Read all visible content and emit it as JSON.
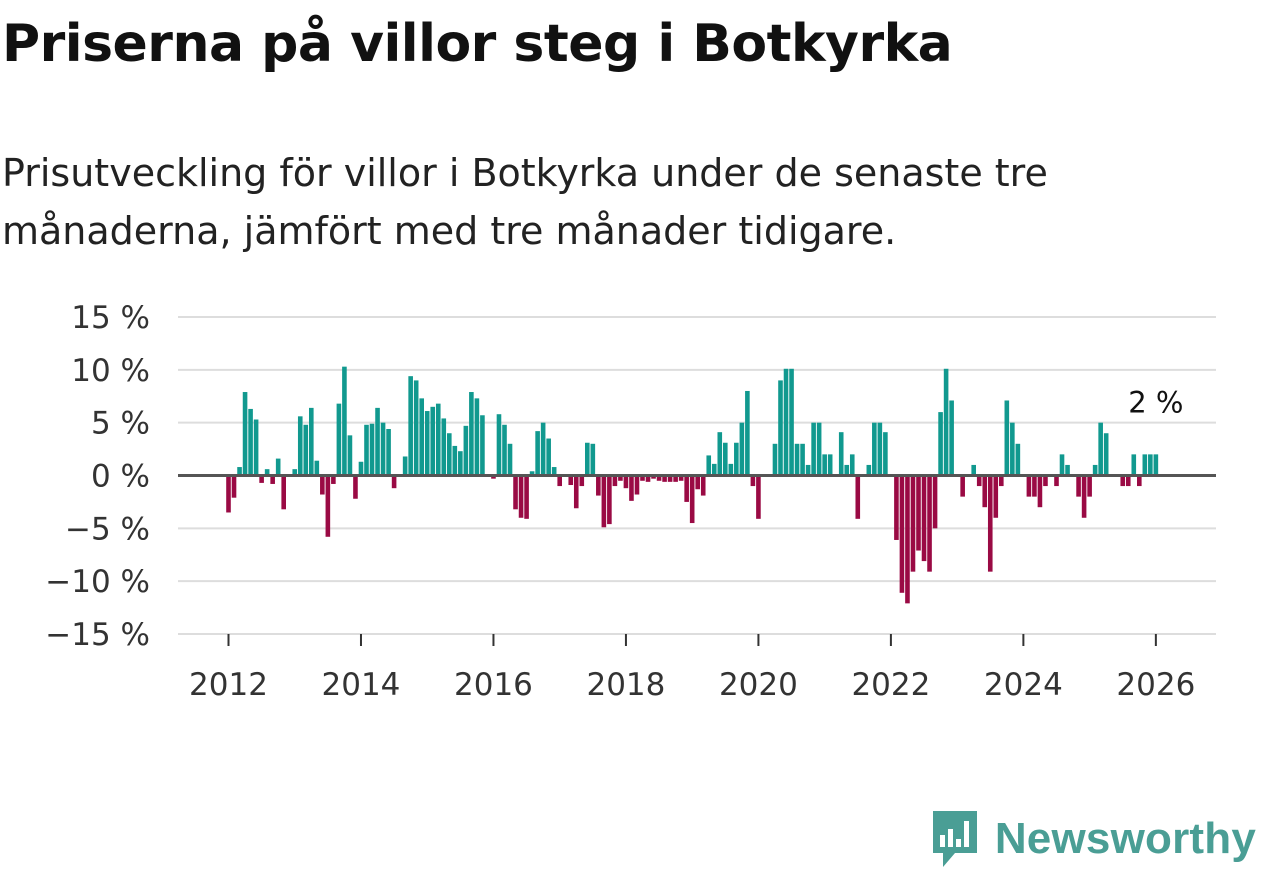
{
  "colors": {
    "positive": "#11998f",
    "negative": "#9a0a44",
    "grid": "#dddddd",
    "zero": "#555555"
  },
  "chart_data": {
    "type": "bar",
    "title": "Priserna på villor steg i Botkyrka",
    "subtitle": "Prisutveckling för villor i Botkyrka under de senaste tre månaderna, jämfört med tre månader tidigare.",
    "x_start": "2012-01",
    "x_step": "month",
    "ylim": [
      -15,
      15
    ],
    "y_ticks": [
      15,
      10,
      5,
      0,
      -5,
      -10,
      -15
    ],
    "y_tick_labels": [
      "15 %",
      "10 %",
      "5 %",
      "0 %",
      "−5 %",
      "−10 %",
      "−15 %"
    ],
    "x_ticks": [
      2012,
      2014,
      2016,
      2018,
      2020,
      2022,
      2024,
      2026
    ],
    "grid": true,
    "end_label": "2 %",
    "values": [
      -3.5,
      -2.1,
      0.8,
      7.9,
      6.3,
      5.3,
      -0.7,
      0.6,
      -0.8,
      1.6,
      -3.2,
      0,
      0.6,
      5.6,
      4.8,
      6.4,
      1.4,
      -1.8,
      -5.8,
      -0.8,
      6.8,
      10.3,
      3.8,
      -2.2,
      1.3,
      4.8,
      4.9,
      6.4,
      5.0,
      4.4,
      -1.2,
      0.1,
      1.8,
      9.4,
      9.0,
      7.3,
      6.1,
      6.5,
      6.8,
      5.4,
      4.0,
      2.8,
      2.3,
      4.7,
      7.9,
      7.3,
      5.7,
      0,
      -0.3,
      5.8,
      4.8,
      3.0,
      -3.2,
      -4.0,
      -4.1,
      0.4,
      4.2,
      5.0,
      3.5,
      0.8,
      -1.0,
      0,
      -0.9,
      -3.1,
      -1.0,
      3.1,
      3.0,
      -1.9,
      -4.9,
      -4.6,
      -1.0,
      -0.5,
      -1.2,
      -2.4,
      -1.8,
      -0.5,
      -0.6,
      -0.3,
      -0.5,
      -0.6,
      -0.6,
      -0.6,
      -0.5,
      -2.5,
      -4.5,
      -1.3,
      -1.9,
      1.9,
      1.1,
      4.1,
      3.1,
      1.1,
      3.1,
      5.0,
      8.0,
      -1.0,
      -4.1,
      0,
      0,
      3.0,
      9.0,
      10.1,
      10.1,
      3.0,
      3.0,
      1.0,
      5.0,
      5.0,
      2.0,
      2.0,
      0,
      4.1,
      1.0,
      2.0,
      -4.1,
      0,
      1.0,
      5.0,
      5.0,
      4.1,
      0,
      -6.1,
      -11.1,
      -12.1,
      -9.1,
      -7.1,
      -8.1,
      -9.1,
      -5.0,
      6.0,
      10.1,
      7.1,
      0,
      -2.0,
      0,
      1.0,
      -1.0,
      -3.0,
      -9.1,
      -4.0,
      -1.0,
      7.1,
      5.0,
      3.0,
      0,
      -2.0,
      -2.0,
      -3.0,
      -1.0,
      0,
      -1.0,
      2.0,
      1.0,
      0,
      -2.0,
      -4.0,
      -2.0,
      1.0,
      5.0,
      4.0,
      0,
      0,
      -1.0,
      -1.0,
      2.0,
      -1.0,
      2.0,
      2.0,
      2.0
    ]
  },
  "brand": {
    "name": "Newsworthy",
    "logo_icon": "bar-chart-bubble-icon"
  }
}
